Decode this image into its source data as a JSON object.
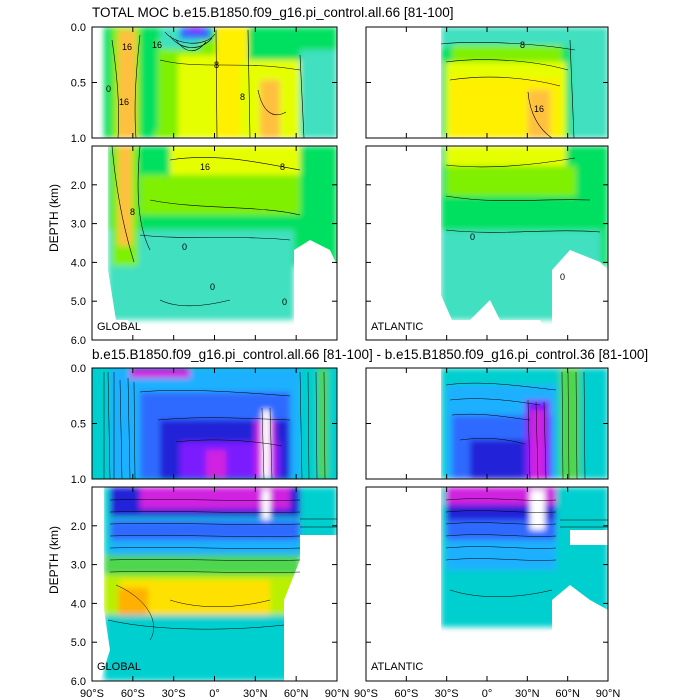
{
  "figure": {
    "title_top": "TOTAL MOC b.e15.B1850.f09_g16.pi_control.all.66 [81-100]",
    "title_bottom": "b.e15.B1850.f09_g16.pi_control.all.66 [81-100] - b.e15.B1850.f09_g16.pi_control.36 [81-100]",
    "ylabel": "DEPTH (km)",
    "y_ticks_upper": [
      "0.0",
      "0.5",
      "1.0"
    ],
    "y_ticks_lower": [
      "2.0",
      "3.0",
      "4.0",
      "5.0",
      "6.0"
    ],
    "x_ticks": [
      "90°S",
      "60°S",
      "30°S",
      "0°",
      "30°N",
      "60°N",
      "90°N"
    ],
    "panel_labels": {
      "global": "GLOBAL",
      "atlantic": "ATLANTIC"
    },
    "contour_labels_top_global": [
      "16",
      "16",
      "16",
      "8",
      "8",
      "8",
      "8",
      "16",
      "0",
      "0",
      "0",
      "0"
    ],
    "contour_labels_top_atlantic": [
      "16",
      "8",
      "0",
      "0"
    ]
  },
  "colors": {
    "background": "#ffffff",
    "axis": "#000000",
    "diff_palette": [
      "#00cfcf",
      "#1fb0ff",
      "#2f6bff",
      "#2020d8",
      "#7a1cff",
      "#d020e0",
      "#ff1fb0",
      "#ffffff",
      "#4fd64f",
      "#b8f000",
      "#ffe100",
      "#ffb000"
    ],
    "total_palette": [
      "#40e0c0",
      "#00e060",
      "#7ff000",
      "#e6ff00",
      "#fff000",
      "#ffc040"
    ]
  },
  "chart_data": [
    {
      "type": "heatmap",
      "title": "TOTAL MOC b.e15.B1850.f09_g16.pi_control.all.66 [81-100]",
      "panel": "GLOBAL",
      "ylabel": "DEPTH (km)",
      "x_range": [
        "90°S",
        "90°N"
      ],
      "y_range_km": [
        0,
        6
      ],
      "contour_labels": [
        0,
        8,
        16
      ]
    },
    {
      "type": "heatmap",
      "title": "TOTAL MOC b.e15.B1850.f09_g16.pi_control.all.66 [81-100]",
      "panel": "ATLANTIC",
      "x_range": [
        "90°S",
        "90°N"
      ],
      "y_range_km": [
        0,
        6
      ],
      "contour_labels": [
        0,
        8,
        16
      ]
    },
    {
      "type": "heatmap",
      "title": "b.e15.B1850.f09_g16.pi_control.all.66 [81-100] - b.e15.B1850.f09_g16.pi_control.36 [81-100]",
      "panel": "GLOBAL",
      "ylabel": "DEPTH (km)",
      "x_range": [
        "90°S",
        "90°N"
      ],
      "y_range_km": [
        0,
        6
      ]
    },
    {
      "type": "heatmap",
      "title": "b.e15.B1850.f09_g16.pi_control.all.66 [81-100] - b.e15.B1850.f09_g16.pi_control.36 [81-100]",
      "panel": "ATLANTIC",
      "x_range": [
        "90°S",
        "90°N"
      ],
      "y_range_km": [
        0,
        6
      ]
    }
  ]
}
